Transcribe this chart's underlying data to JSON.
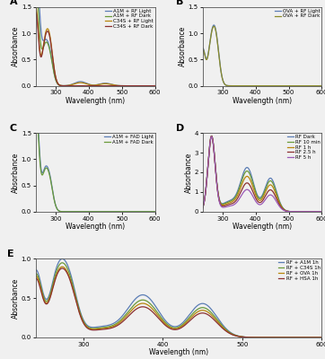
{
  "panel_A": {
    "label": "A",
    "xlabel": "Wavelength (nm)",
    "ylabel": "Absorbance",
    "xlim": [
      240,
      600
    ],
    "ylim": [
      0,
      1.5
    ],
    "yticks": [
      0.0,
      0.5,
      1.0,
      1.5
    ],
    "legend": [
      "A1M + RF Light",
      "A1M + RF Dark",
      "C34S + RF Light",
      "C34S + RF Dark"
    ],
    "colors": [
      "#5b7db5",
      "#6a9a3a",
      "#b8860b",
      "#8b3030"
    ]
  },
  "panel_B": {
    "label": "B",
    "xlabel": "Wavelength (nm)",
    "ylabel": "Absorbance",
    "xlim": [
      240,
      600
    ],
    "ylim": [
      0,
      1.5
    ],
    "yticks": [
      0.0,
      0.5,
      1.0,
      1.5
    ],
    "legend": [
      "OVA + RF Light",
      "OVA + RF Dark"
    ],
    "colors": [
      "#5b7db5",
      "#8b8b2a"
    ]
  },
  "panel_C": {
    "label": "C",
    "xlabel": "Wavelength (nm)",
    "ylabel": "Absorbance",
    "xlim": [
      240,
      600
    ],
    "ylim": [
      0,
      1.5
    ],
    "yticks": [
      0.0,
      0.5,
      1.0,
      1.5
    ],
    "legend": [
      "A1M + FAD Light",
      "A1M + FAD Dark"
    ],
    "colors": [
      "#5b7db5",
      "#6a9a3a"
    ]
  },
  "panel_D": {
    "label": "D",
    "xlabel": "Wavelength (nm)",
    "ylabel": "Absorbance",
    "xlim": [
      240,
      600
    ],
    "ylim": [
      0,
      4
    ],
    "yticks": [
      0,
      1,
      2,
      3,
      4
    ],
    "legend": [
      "RF Dark",
      "RF 10 min",
      "RF 1 h",
      "RF 2.5 h",
      "RF 5 h"
    ],
    "colors": [
      "#5b7db5",
      "#6a9a3a",
      "#b8860b",
      "#8b3030",
      "#9b59b6"
    ]
  },
  "panel_E": {
    "label": "E",
    "xlabel": "Wavelength (nm)",
    "ylabel": "Absorbance",
    "xlim": [
      240,
      600
    ],
    "ylim": [
      0,
      1.0
    ],
    "yticks": [
      0.0,
      0.5,
      1.0
    ],
    "legend": [
      "RF + A1M 1h",
      "RF + C34S 1h",
      "RF + OVA 1h",
      "RF + HSA 1h"
    ],
    "colors": [
      "#5b7db5",
      "#6a9a3a",
      "#b8860b",
      "#8b3030"
    ]
  },
  "background_color": "#f0f0f0"
}
